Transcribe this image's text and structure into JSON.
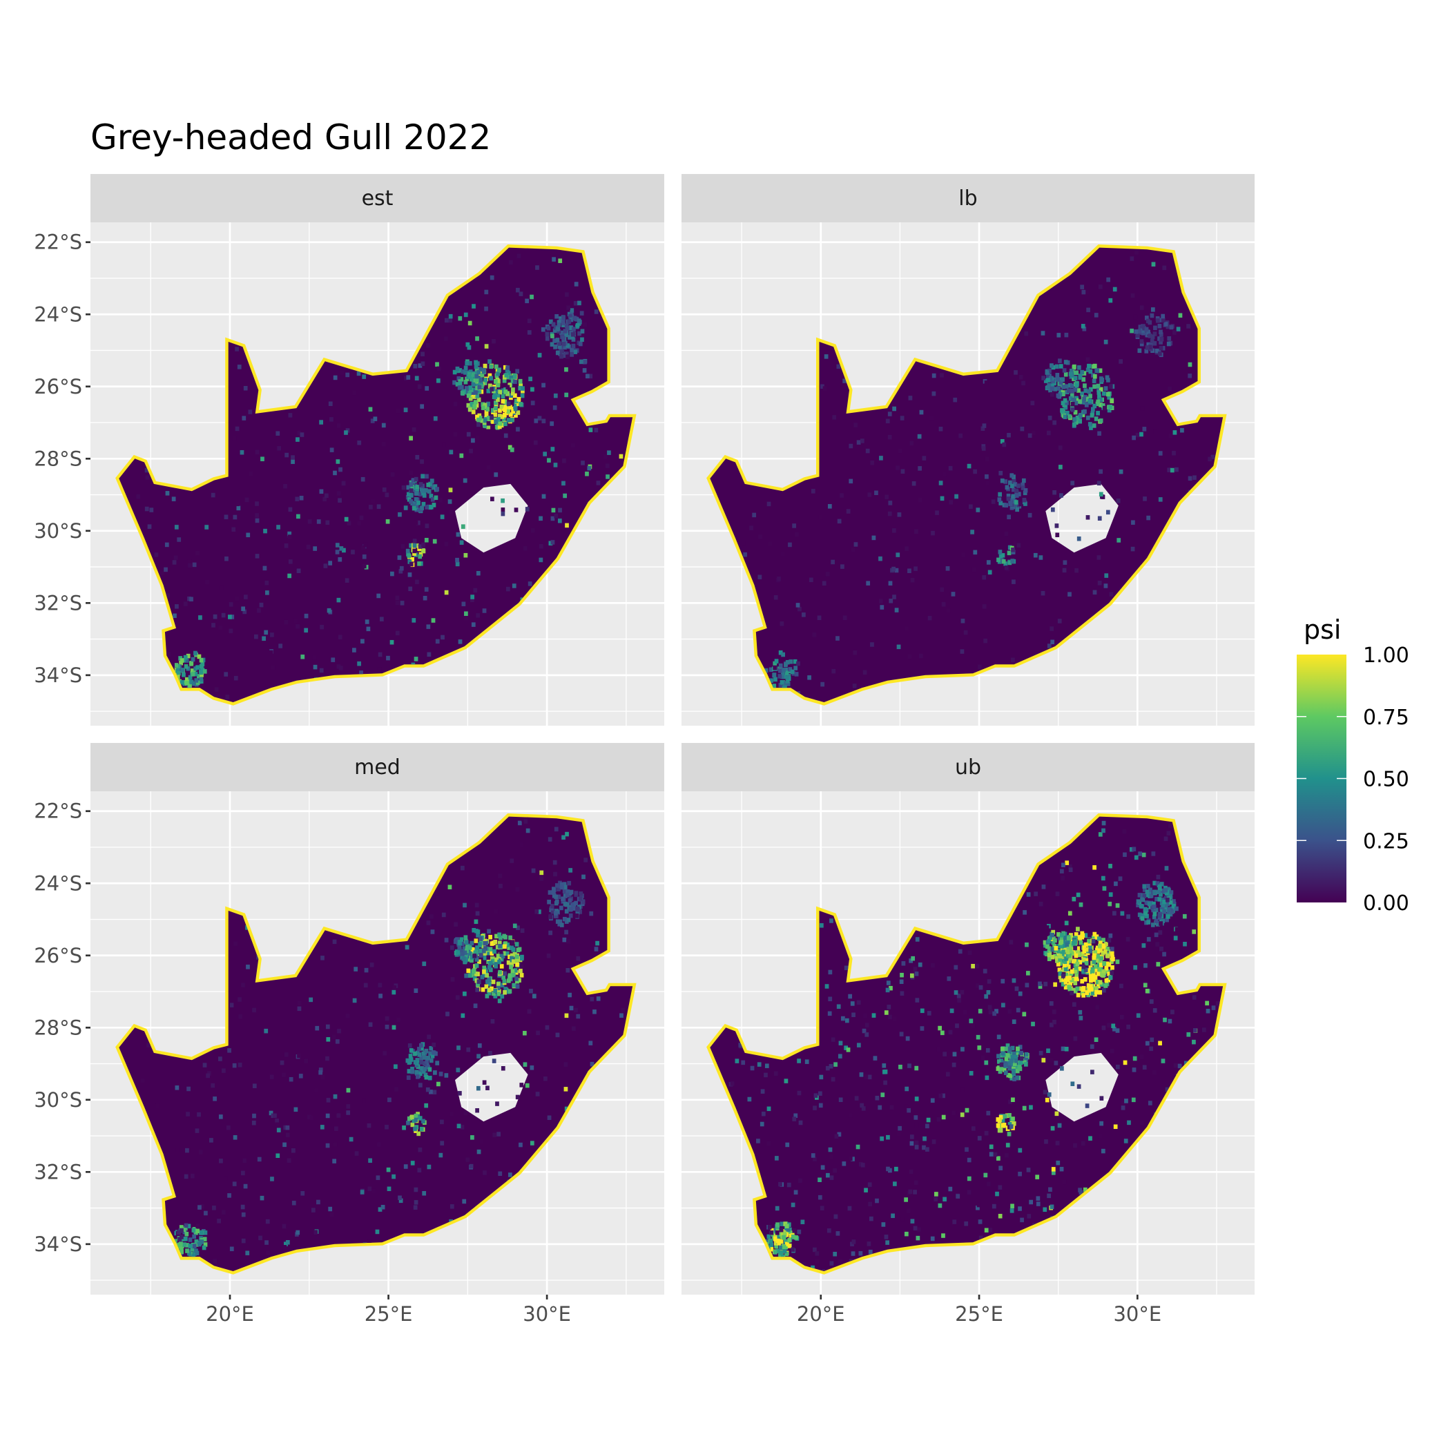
{
  "chart_data": {
    "type": "heatmap",
    "title": "Grey-headed Gull 2022",
    "facets": [
      "est",
      "lb",
      "med",
      "ub"
    ],
    "x_ticks": [
      {
        "value": 20,
        "label": "20°E"
      },
      {
        "value": 25,
        "label": "25°E"
      },
      {
        "value": 30,
        "label": "30°E"
      }
    ],
    "y_ticks": [
      {
        "value": -22,
        "label": "22°S"
      },
      {
        "value": -24,
        "label": "24°S"
      },
      {
        "value": -26,
        "label": "26°S"
      },
      {
        "value": -28,
        "label": "28°S"
      },
      {
        "value": -30,
        "label": "30°S"
      },
      {
        "value": -32,
        "label": "32°S"
      },
      {
        "value": -34,
        "label": "34°S"
      }
    ],
    "xlim": [
      15.6,
      33.7
    ],
    "ylim": [
      -35.4,
      -21.45
    ],
    "grid": true,
    "legend": {
      "title": "psi",
      "position": "right",
      "range": [
        0,
        1
      ],
      "ticks": [
        {
          "value": 1,
          "label": "1.00"
        },
        {
          "value": 0.75,
          "label": "0.75"
        },
        {
          "value": 0.5,
          "label": "0.50"
        },
        {
          "value": 0.25,
          "label": "0.25"
        },
        {
          "value": 0,
          "label": "0.00"
        }
      ],
      "colors": [
        "#440154",
        "#3b528b",
        "#21918c",
        "#5ec962",
        "#fde725"
      ]
    },
    "region_outline": [
      [
        16.5,
        -28.55
      ],
      [
        17.0,
        -28.0
      ],
      [
        17.3,
        -28.1
      ],
      [
        17.6,
        -28.7
      ],
      [
        18.8,
        -28.9
      ],
      [
        19.5,
        -28.6
      ],
      [
        19.95,
        -28.5
      ],
      [
        19.95,
        -24.76
      ],
      [
        20.4,
        -24.9
      ],
      [
        20.9,
        -26.1
      ],
      [
        20.8,
        -26.75
      ],
      [
        22.1,
        -26.6
      ],
      [
        23.0,
        -25.3
      ],
      [
        24.5,
        -25.7
      ],
      [
        25.6,
        -25.6
      ],
      [
        26.9,
        -23.5
      ],
      [
        27.9,
        -22.9
      ],
      [
        28.8,
        -22.15
      ],
      [
        30.3,
        -22.2
      ],
      [
        31.1,
        -22.3
      ],
      [
        31.4,
        -23.4
      ],
      [
        31.9,
        -24.4
      ],
      [
        31.9,
        -25.85
      ],
      [
        31.4,
        -26.1
      ],
      [
        30.75,
        -26.35
      ],
      [
        31.25,
        -27.1
      ],
      [
        31.9,
        -27.0
      ],
      [
        32.0,
        -26.85
      ],
      [
        32.7,
        -26.85
      ],
      [
        32.4,
        -28.2
      ],
      [
        31.3,
        -29.2
      ],
      [
        30.3,
        -30.75
      ],
      [
        29.1,
        -32.0
      ],
      [
        27.4,
        -33.2
      ],
      [
        26.1,
        -33.7
      ],
      [
        25.5,
        -33.7
      ],
      [
        24.8,
        -33.95
      ],
      [
        23.3,
        -34.0
      ],
      [
        22.1,
        -34.15
      ],
      [
        21.3,
        -34.35
      ],
      [
        20.1,
        -34.75
      ],
      [
        19.5,
        -34.6
      ],
      [
        19.05,
        -34.35
      ],
      [
        18.5,
        -34.35
      ],
      [
        18.3,
        -33.95
      ],
      [
        18.0,
        -33.45
      ],
      [
        17.95,
        -32.8
      ],
      [
        18.3,
        -32.7
      ],
      [
        17.9,
        -31.5
      ],
      [
        17.3,
        -30.2
      ]
    ],
    "region_hole": [
      [
        27.1,
        -29.45
      ],
      [
        28.0,
        -28.8
      ],
      [
        28.85,
        -28.7
      ],
      [
        29.4,
        -29.3
      ],
      [
        29.0,
        -30.2
      ],
      [
        28.0,
        -30.6
      ],
      [
        27.3,
        -30.2
      ]
    ],
    "background_value": 0.0,
    "coast_value": 1.0,
    "hotspots": [
      {
        "lon": 28.3,
        "lat": -26.2,
        "radius": 0.9,
        "psi": 0.95
      },
      {
        "lon": 27.5,
        "lat": -25.7,
        "radius": 0.5,
        "psi": 0.6
      },
      {
        "lon": 26.0,
        "lat": -28.9,
        "radius": 0.5,
        "psi": 0.5
      },
      {
        "lon": 18.7,
        "lat": -33.8,
        "radius": 0.5,
        "psi": 0.7
      },
      {
        "lon": 30.5,
        "lat": -24.5,
        "radius": 0.6,
        "psi": 0.35
      },
      {
        "lon": 25.8,
        "lat": -30.6,
        "radius": 0.3,
        "psi": 0.9
      }
    ]
  }
}
